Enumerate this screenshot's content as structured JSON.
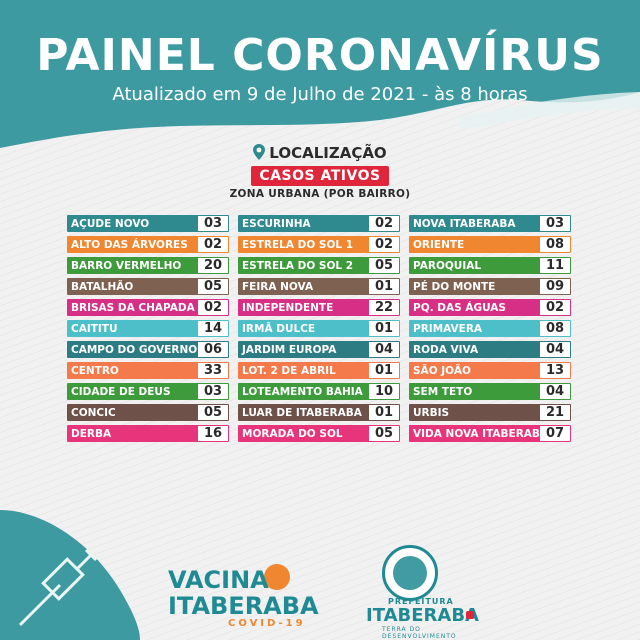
{
  "header": {
    "title": "PAINEL CORONAVÍRUS",
    "subtitle": "Atualizado em 9 de Julho de 2021 - às 8 horas"
  },
  "section": {
    "location_label": "LOCALIZAÇÃO",
    "badge": "CASOS ATIVOS",
    "zone": "ZONA URBANA (POR BAIRRO)"
  },
  "colors": {
    "header_teal": "#3c9aa0",
    "badge_red": "#e0263a"
  },
  "neighborhoods": [
    {
      "name": "AÇUDE NOVO",
      "count": "03",
      "color": "c-teal"
    },
    {
      "name": "ESCURINHA",
      "count": "02",
      "color": "c-teal"
    },
    {
      "name": "NOVA ITABERABA",
      "count": "03",
      "color": "c-teal"
    },
    {
      "name": "ALTO DAS ÁRVORES",
      "count": "02",
      "color": "c-orange"
    },
    {
      "name": "ESTRELA DO SOL 1",
      "count": "02",
      "color": "c-orange"
    },
    {
      "name": "ORIENTE",
      "count": "08",
      "color": "c-orange"
    },
    {
      "name": "BARRO VERMELHO",
      "count": "20",
      "color": "c-green"
    },
    {
      "name": "ESTRELA DO SOL 2",
      "count": "05",
      "color": "c-green"
    },
    {
      "name": "PAROQUIAL",
      "count": "11",
      "color": "c-green"
    },
    {
      "name": "BATALHÃO",
      "count": "05",
      "color": "c-brown"
    },
    {
      "name": "FEIRA NOVA",
      "count": "01",
      "color": "c-brown"
    },
    {
      "name": "PÉ DO MONTE",
      "count": "09",
      "color": "c-brown"
    },
    {
      "name": "BRISAS DA CHAPADA",
      "count": "02",
      "color": "c-magenta"
    },
    {
      "name": "INDEPENDENTE",
      "count": "22",
      "color": "c-magenta"
    },
    {
      "name": "PQ. DAS ÁGUAS",
      "count": "02",
      "color": "c-magenta"
    },
    {
      "name": "CAITITU",
      "count": "14",
      "color": "c-cyan"
    },
    {
      "name": "IRMÃ DULCE",
      "count": "01",
      "color": "c-cyan"
    },
    {
      "name": "PRIMAVERA",
      "count": "08",
      "color": "c-cyan"
    },
    {
      "name": "CAMPO DO GOVERNO",
      "count": "06",
      "color": "c-darkteal"
    },
    {
      "name": "JARDIM EUROPA",
      "count": "04",
      "color": "c-darkteal"
    },
    {
      "name": "RODA VIVA",
      "count": "04",
      "color": "c-darkteal"
    },
    {
      "name": "CENTRO",
      "count": "33",
      "color": "c-salmon"
    },
    {
      "name": "LOT. 2 DE ABRIL",
      "count": "01",
      "color": "c-salmon"
    },
    {
      "name": "SÃO JOÃO",
      "count": "13",
      "color": "c-salmon"
    },
    {
      "name": "CIDADE DE DEUS",
      "count": "03",
      "color": "c-green"
    },
    {
      "name": "LOTEAMENTO BAHIA",
      "count": "10",
      "color": "c-green"
    },
    {
      "name": "SEM TETO",
      "count": "04",
      "color": "c-green"
    },
    {
      "name": "CONCIC",
      "count": "05",
      "color": "c-mahog"
    },
    {
      "name": "LUAR DE ITABERABA",
      "count": "01",
      "color": "c-mahog"
    },
    {
      "name": "URBIS",
      "count": "21",
      "color": "c-mahog"
    },
    {
      "name": "DERBA",
      "count": "16",
      "color": "c-pink"
    },
    {
      "name": "MORADA DO SOL",
      "count": "05",
      "color": "c-pink"
    },
    {
      "name": "VIDA NOVA ITABERABA",
      "count": "07",
      "color": "c-pink"
    }
  ],
  "footer": {
    "vacina_line1": "VACINA",
    "vacina_line2": "ITABERABA",
    "vacina_line3": "COVID-19",
    "prefeitura_label": "PREFEITURA",
    "prefeitura_city": "ITABERABA",
    "prefeitura_tagline": "TERRA DO DESENVOLVIMENTO"
  }
}
